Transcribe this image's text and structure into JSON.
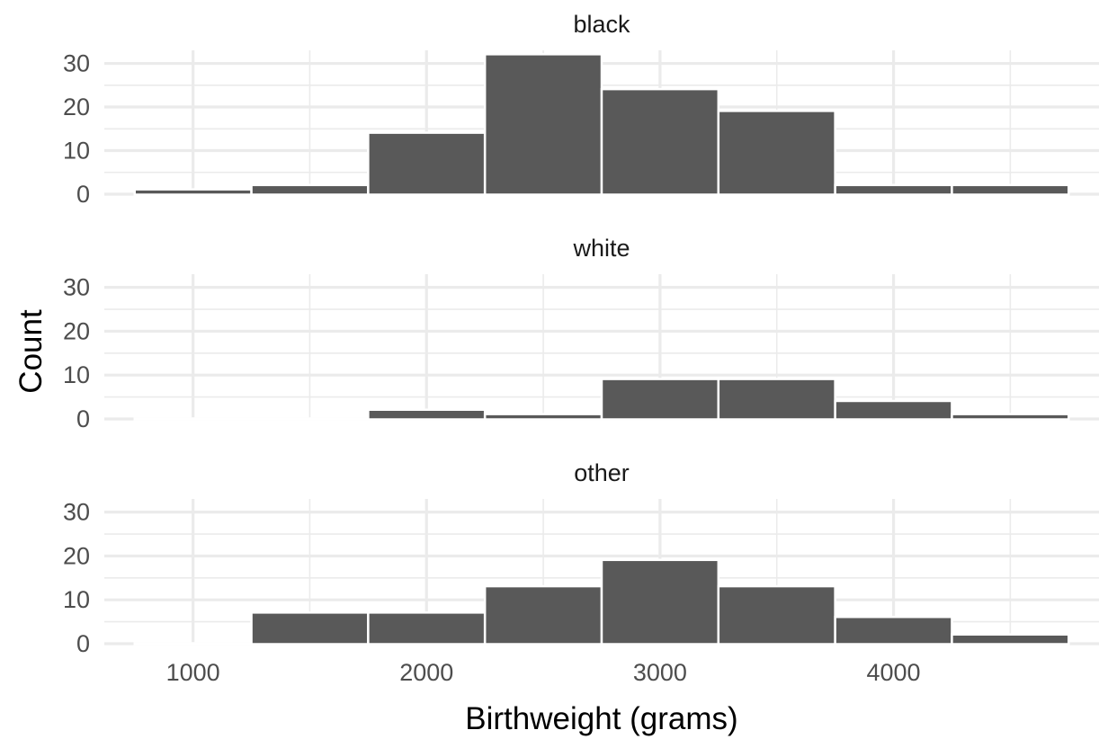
{
  "chart_data": {
    "type": "bar",
    "subtype": "faceted-histogram",
    "xlabel": "Birthweight (grams)",
    "ylabel": "Count",
    "xlim": [
      620,
      4880
    ],
    "ylim": [
      0,
      33
    ],
    "x_ticks": [
      1000,
      2000,
      3000,
      4000
    ],
    "y_ticks": [
      0,
      10,
      20,
      30
    ],
    "bin_edges": [
      750,
      1250,
      1750,
      2250,
      2750,
      3250,
      3750,
      4250,
      4750
    ],
    "grid": true,
    "legend": "none",
    "bar_color": "#595959",
    "facets": [
      {
        "name": "black",
        "values": [
          1,
          2,
          14,
          32,
          24,
          19,
          2,
          2
        ]
      },
      {
        "name": "white",
        "values": [
          0,
          0,
          2,
          1,
          9,
          9,
          4,
          1
        ]
      },
      {
        "name": "other",
        "values": [
          0,
          7,
          7,
          13,
          19,
          13,
          6,
          2
        ]
      }
    ]
  }
}
